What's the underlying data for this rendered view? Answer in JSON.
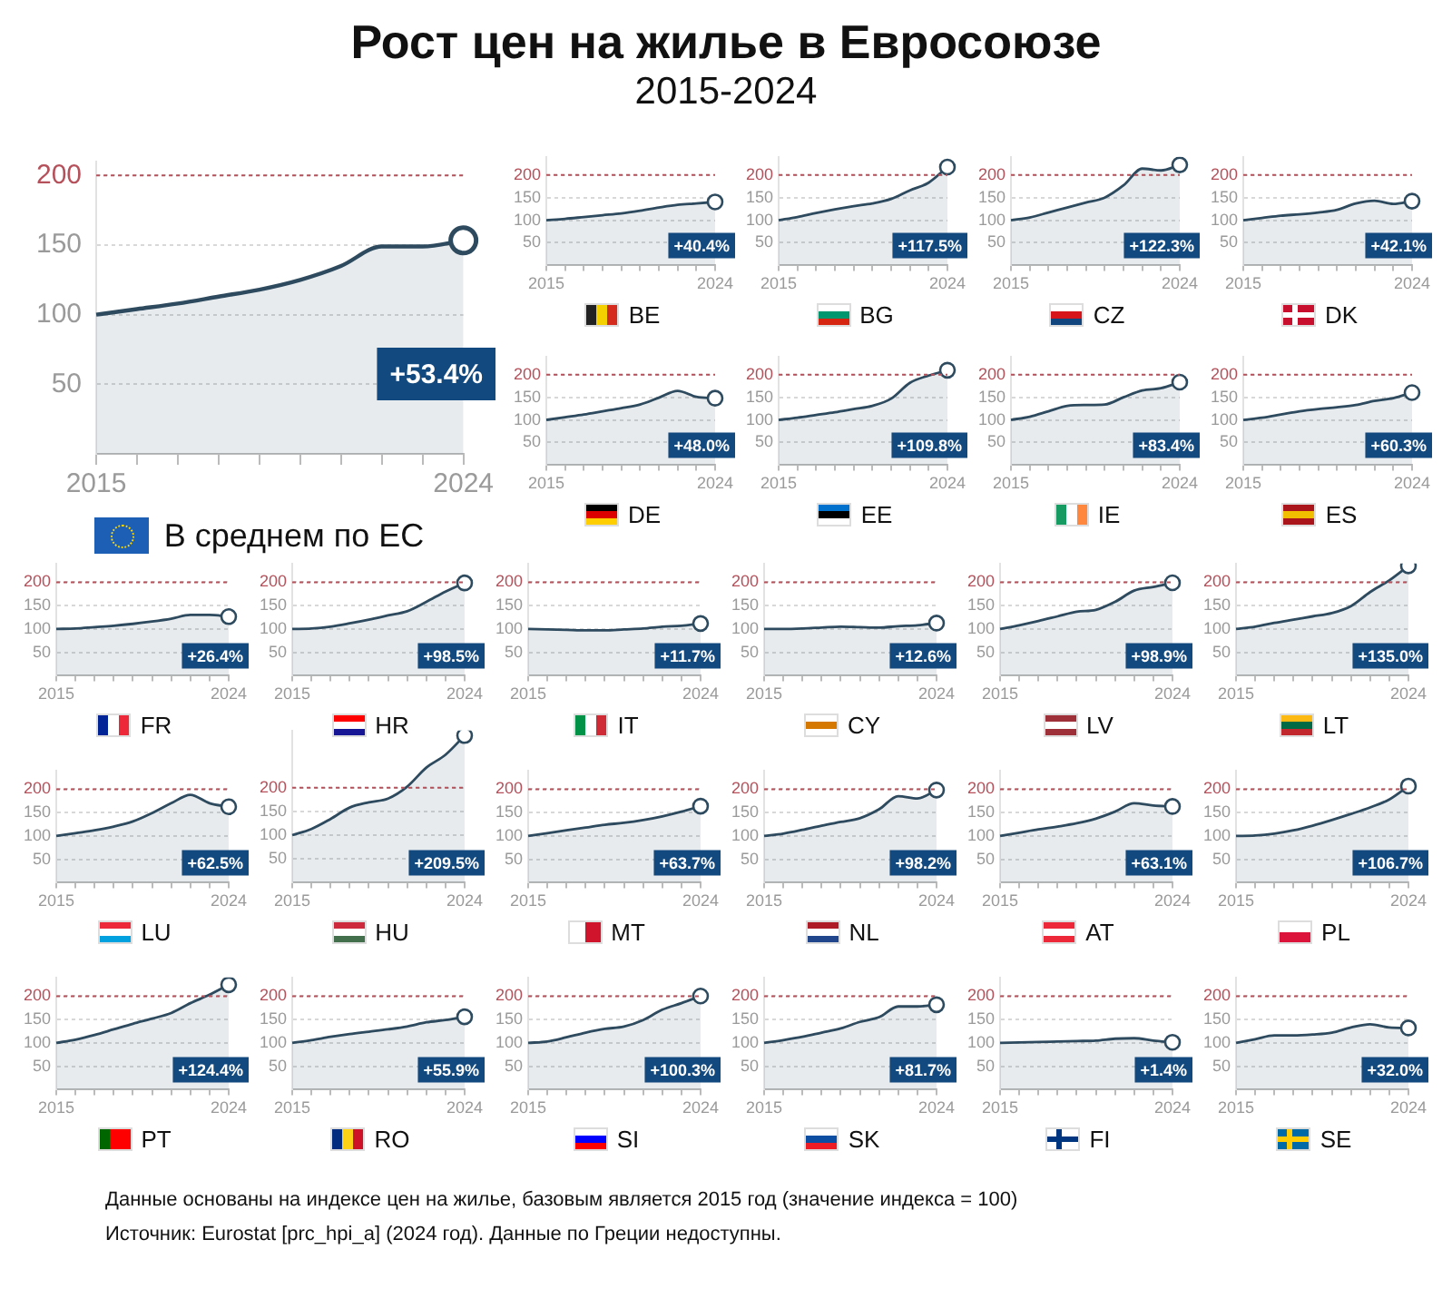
{
  "chart_data": [
    {
      "type": "other",
      "title": "Рост цен на жилье в Евросоюзе",
      "subtitle": "2015-2024",
      "annotations": [
        "Данные основаны на индексе цен на жилье, базовым является 2015 год (значение индекса = 100)",
        "Источник: Eurostat [prc_hpi_a] (2024 год). Данные по Греции недоступны."
      ]
    },
    {
      "type": "area",
      "title": "В среднем по ЕС",
      "categories": [
        "2015",
        null,
        null,
        null,
        null,
        null,
        null,
        null,
        null,
        "2024"
      ],
      "series": [
        {
          "type": "area",
          "color": "#2d4a5e",
          "values": [
            100,
            104,
            108,
            113,
            118,
            125,
            135,
            149,
            149,
            153.4
          ]
        },
        {
          "type": "scatter",
          "color": "#2d4a5e",
          "values": [
            null,
            null,
            null,
            null,
            null,
            null,
            null,
            null,
            null,
            153.4
          ],
          "marker": "circle"
        }
      ],
      "ylim": [
        0,
        210
      ],
      "yticks": [
        50,
        100,
        150,
        200
      ],
      "grid": "y",
      "ref_lines": [
        {
          "axis": "y",
          "value": 200,
          "color": "#b5515b",
          "line_style": "dotted"
        }
      ],
      "annotations": [
        "+53.4%"
      ]
    },
    {
      "type": "area",
      "title": "BE",
      "categories": [
        "2015",
        null,
        null,
        null,
        null,
        null,
        null,
        null,
        null,
        "2024"
      ],
      "series": [
        {
          "type": "area",
          "color": "#2d4a5e",
          "values": [
            100,
            103,
            107,
            111,
            115,
            121,
            128,
            134,
            137,
            140.4
          ]
        },
        {
          "type": "scatter",
          "color": "#2d4a5e",
          "values": [
            null,
            null,
            null,
            null,
            null,
            null,
            null,
            null,
            null,
            140.4
          ],
          "marker": "circle"
        }
      ],
      "ylim": [
        0,
        240
      ],
      "yticks": [
        50,
        100,
        150,
        200
      ],
      "grid": "y",
      "ref_lines": [
        {
          "axis": "y",
          "value": 200,
          "color": "#b5515b",
          "line_style": "dotted"
        }
      ],
      "annotations": [
        "+40.4%"
      ]
    },
    {
      "type": "area",
      "title": "BG",
      "categories": [
        "2015",
        null,
        null,
        null,
        null,
        null,
        null,
        null,
        null,
        "2024"
      ],
      "series": [
        {
          "type": "area",
          "color": "#2d4a5e",
          "values": [
            100,
            107,
            116,
            124,
            131,
            137,
            147,
            166,
            183,
            217.5
          ]
        },
        {
          "type": "scatter",
          "color": "#2d4a5e",
          "values": [
            null,
            null,
            null,
            null,
            null,
            null,
            null,
            null,
            null,
            217.5
          ],
          "marker": "circle"
        }
      ],
      "ylim": [
        0,
        240
      ],
      "yticks": [
        50,
        100,
        150,
        200
      ],
      "grid": "y",
      "ref_lines": [
        {
          "axis": "y",
          "value": 200,
          "color": "#b5515b",
          "line_style": "dotted"
        }
      ],
      "annotations": [
        "+117.5%"
      ]
    },
    {
      "type": "area",
      "title": "CZ",
      "categories": [
        "2015",
        null,
        null,
        null,
        null,
        null,
        null,
        null,
        null,
        "2024"
      ],
      "series": [
        {
          "type": "area",
          "color": "#2d4a5e",
          "values": [
            100,
            106,
            117,
            128,
            139,
            150,
            177,
            214,
            210,
            222.3
          ]
        },
        {
          "type": "scatter",
          "color": "#2d4a5e",
          "values": [
            null,
            null,
            null,
            null,
            null,
            null,
            null,
            null,
            null,
            222.3
          ],
          "marker": "circle"
        }
      ],
      "ylim": [
        0,
        240
      ],
      "yticks": [
        50,
        100,
        150,
        200
      ],
      "grid": "y",
      "ref_lines": [
        {
          "axis": "y",
          "value": 200,
          "color": "#b5515b",
          "line_style": "dotted"
        }
      ],
      "annotations": [
        "+122.3%"
      ]
    },
    {
      "type": "area",
      "title": "DK",
      "categories": [
        "2015",
        null,
        null,
        null,
        null,
        null,
        null,
        null,
        null,
        "2024"
      ],
      "series": [
        {
          "type": "area",
          "color": "#2d4a5e",
          "values": [
            100,
            105,
            110,
            113,
            117,
            123,
            137,
            143,
            136,
            142.1
          ]
        },
        {
          "type": "scatter",
          "color": "#2d4a5e",
          "values": [
            null,
            null,
            null,
            null,
            null,
            null,
            null,
            null,
            null,
            142.1
          ],
          "marker": "circle"
        }
      ],
      "ylim": [
        0,
        240
      ],
      "yticks": [
        50,
        100,
        150,
        200
      ],
      "grid": "y",
      "ref_lines": [
        {
          "axis": "y",
          "value": 200,
          "color": "#b5515b",
          "line_style": "dotted"
        }
      ],
      "annotations": [
        "+42.1%"
      ]
    },
    {
      "type": "area",
      "title": "DE",
      "categories": [
        "2015",
        null,
        null,
        null,
        null,
        null,
        null,
        null,
        null,
        "2024"
      ],
      "series": [
        {
          "type": "area",
          "color": "#2d4a5e",
          "values": [
            100,
            106,
            112,
            119,
            126,
            134,
            149,
            164,
            151,
            148.0
          ]
        },
        {
          "type": "scatter",
          "color": "#2d4a5e",
          "values": [
            null,
            null,
            null,
            null,
            null,
            null,
            null,
            null,
            null,
            148.0
          ],
          "marker": "circle"
        }
      ],
      "ylim": [
        0,
        240
      ],
      "yticks": [
        50,
        100,
        150,
        200
      ],
      "grid": "y",
      "ref_lines": [
        {
          "axis": "y",
          "value": 200,
          "color": "#b5515b",
          "line_style": "dotted"
        }
      ],
      "annotations": [
        "+48.0%"
      ]
    },
    {
      "type": "area",
      "title": "EE",
      "categories": [
        "2015",
        null,
        null,
        null,
        null,
        null,
        null,
        null,
        null,
        "2024"
      ],
      "series": [
        {
          "type": "area",
          "color": "#2d4a5e",
          "values": [
            100,
            105,
            111,
            117,
            124,
            131,
            147,
            182,
            198,
            209.8
          ]
        },
        {
          "type": "scatter",
          "color": "#2d4a5e",
          "values": [
            null,
            null,
            null,
            null,
            null,
            null,
            null,
            null,
            null,
            209.8
          ],
          "marker": "circle"
        }
      ],
      "ylim": [
        0,
        240
      ],
      "yticks": [
        50,
        100,
        150,
        200
      ],
      "grid": "y",
      "ref_lines": [
        {
          "axis": "y",
          "value": 200,
          "color": "#b5515b",
          "line_style": "dotted"
        }
      ],
      "annotations": [
        "+109.8%"
      ]
    },
    {
      "type": "area",
      "title": "IE",
      "categories": [
        "2015",
        null,
        null,
        null,
        null,
        null,
        null,
        null,
        null,
        "2024"
      ],
      "series": [
        {
          "type": "area",
          "color": "#2d4a5e",
          "values": [
            100,
            107,
            119,
            131,
            133,
            134,
            150,
            165,
            170,
            183.4
          ]
        },
        {
          "type": "scatter",
          "color": "#2d4a5e",
          "values": [
            null,
            null,
            null,
            null,
            null,
            null,
            null,
            null,
            null,
            183.4
          ],
          "marker": "circle"
        }
      ],
      "ylim": [
        0,
        240
      ],
      "yticks": [
        50,
        100,
        150,
        200
      ],
      "grid": "y",
      "ref_lines": [
        {
          "axis": "y",
          "value": 200,
          "color": "#b5515b",
          "line_style": "dotted"
        }
      ],
      "annotations": [
        "+83.4%"
      ]
    },
    {
      "type": "area",
      "title": "ES",
      "categories": [
        "2015",
        null,
        null,
        null,
        null,
        null,
        null,
        null,
        null,
        "2024"
      ],
      "series": [
        {
          "type": "area",
          "color": "#2d4a5e",
          "values": [
            100,
            105,
            112,
            119,
            124,
            128,
            133,
            142,
            148,
            160.3
          ]
        },
        {
          "type": "scatter",
          "color": "#2d4a5e",
          "values": [
            null,
            null,
            null,
            null,
            null,
            null,
            null,
            null,
            null,
            160.3
          ],
          "marker": "circle"
        }
      ],
      "ylim": [
        0,
        240
      ],
      "yticks": [
        50,
        100,
        150,
        200
      ],
      "grid": "y",
      "ref_lines": [
        {
          "axis": "y",
          "value": 200,
          "color": "#b5515b",
          "line_style": "dotted"
        }
      ],
      "annotations": [
        "+60.3%"
      ]
    },
    {
      "type": "area",
      "title": "FR",
      "categories": [
        "2015",
        null,
        null,
        null,
        null,
        null,
        null,
        null,
        null,
        "2024"
      ],
      "series": [
        {
          "type": "area",
          "color": "#2d4a5e",
          "values": [
            100,
            101,
            104,
            107,
            111,
            116,
            122,
            130,
            130,
            126.4
          ]
        },
        {
          "type": "scatter",
          "color": "#2d4a5e",
          "values": [
            null,
            null,
            null,
            null,
            null,
            null,
            null,
            null,
            null,
            126.4
          ],
          "marker": "circle"
        }
      ],
      "ylim": [
        0,
        240
      ],
      "yticks": [
        50,
        100,
        150,
        200
      ],
      "grid": "y",
      "ref_lines": [
        {
          "axis": "y",
          "value": 200,
          "color": "#b5515b",
          "line_style": "dotted"
        }
      ],
      "annotations": [
        "+26.4%"
      ]
    },
    {
      "type": "area",
      "title": "HR",
      "categories": [
        "2015",
        null,
        null,
        null,
        null,
        null,
        null,
        null,
        null,
        "2024"
      ],
      "series": [
        {
          "type": "area",
          "color": "#2d4a5e",
          "values": [
            100,
            101,
            105,
            112,
            120,
            129,
            138,
            158,
            180,
            198.5
          ]
        },
        {
          "type": "scatter",
          "color": "#2d4a5e",
          "values": [
            null,
            null,
            null,
            null,
            null,
            null,
            null,
            null,
            null,
            198.5
          ],
          "marker": "circle"
        }
      ],
      "ylim": [
        0,
        240
      ],
      "yticks": [
        50,
        100,
        150,
        200
      ],
      "grid": "y",
      "ref_lines": [
        {
          "axis": "y",
          "value": 200,
          "color": "#b5515b",
          "line_style": "dotted"
        }
      ],
      "annotations": [
        "+98.5%"
      ]
    },
    {
      "type": "area",
      "title": "IT",
      "categories": [
        "2015",
        null,
        null,
        null,
        null,
        null,
        null,
        null,
        null,
        "2024"
      ],
      "series": [
        {
          "type": "area",
          "color": "#2d4a5e",
          "values": [
            100,
            99,
            98,
            97,
            97,
            99,
            101,
            105,
            107,
            111.7
          ]
        },
        {
          "type": "scatter",
          "color": "#2d4a5e",
          "values": [
            null,
            null,
            null,
            null,
            null,
            null,
            null,
            null,
            null,
            111.7
          ],
          "marker": "circle"
        }
      ],
      "ylim": [
        0,
        240
      ],
      "yticks": [
        50,
        100,
        150,
        200
      ],
      "grid": "y",
      "ref_lines": [
        {
          "axis": "y",
          "value": 200,
          "color": "#b5515b",
          "line_style": "dotted"
        }
      ],
      "annotations": [
        "+11.7%"
      ]
    },
    {
      "type": "area",
      "title": "CY",
      "categories": [
        "2015",
        null,
        null,
        null,
        null,
        null,
        null,
        null,
        null,
        "2024"
      ],
      "series": [
        {
          "type": "area",
          "color": "#2d4a5e",
          "values": [
            100,
            100,
            101,
            103,
            105,
            104,
            103,
            106,
            108,
            112.6
          ]
        },
        {
          "type": "scatter",
          "color": "#2d4a5e",
          "values": [
            null,
            null,
            null,
            null,
            null,
            null,
            null,
            null,
            null,
            112.6
          ],
          "marker": "circle"
        }
      ],
      "ylim": [
        0,
        240
      ],
      "yticks": [
        50,
        100,
        150,
        200
      ],
      "grid": "y",
      "ref_lines": [
        {
          "axis": "y",
          "value": 200,
          "color": "#b5515b",
          "line_style": "dotted"
        }
      ],
      "annotations": [
        "+12.6%"
      ]
    },
    {
      "type": "area",
      "title": "LV",
      "categories": [
        "2015",
        null,
        null,
        null,
        null,
        null,
        null,
        null,
        null,
        "2024"
      ],
      "series": [
        {
          "type": "area",
          "color": "#2d4a5e",
          "values": [
            100,
            108,
            117,
            127,
            137,
            141,
            158,
            182,
            190,
            198.9
          ]
        },
        {
          "type": "scatter",
          "color": "#2d4a5e",
          "values": [
            null,
            null,
            null,
            null,
            null,
            null,
            null,
            null,
            null,
            198.9
          ],
          "marker": "circle"
        }
      ],
      "ylim": [
        0,
        240
      ],
      "yticks": [
        50,
        100,
        150,
        200
      ],
      "grid": "y",
      "ref_lines": [
        {
          "axis": "y",
          "value": 200,
          "color": "#b5515b",
          "line_style": "dotted"
        }
      ],
      "annotations": [
        "+98.9%"
      ]
    },
    {
      "type": "area",
      "title": "LT",
      "categories": [
        "2015",
        null,
        null,
        null,
        null,
        null,
        null,
        null,
        null,
        "2024"
      ],
      "series": [
        {
          "type": "area",
          "color": "#2d4a5e",
          "values": [
            100,
            105,
            113,
            120,
            127,
            134,
            149,
            179,
            204,
            235.0
          ]
        },
        {
          "type": "scatter",
          "color": "#2d4a5e",
          "values": [
            null,
            null,
            null,
            null,
            null,
            null,
            null,
            null,
            null,
            235.0
          ],
          "marker": "circle"
        }
      ],
      "ylim": [
        0,
        240
      ],
      "yticks": [
        50,
        100,
        150,
        200
      ],
      "grid": "y",
      "ref_lines": [
        {
          "axis": "y",
          "value": 200,
          "color": "#b5515b",
          "line_style": "dotted"
        }
      ],
      "annotations": [
        "+135.0%"
      ]
    },
    {
      "type": "area",
      "title": "LU",
      "categories": [
        "2015",
        null,
        null,
        null,
        null,
        null,
        null,
        null,
        null,
        "2024"
      ],
      "series": [
        {
          "type": "area",
          "color": "#2d4a5e",
          "values": [
            100,
            106,
            112,
            120,
            131,
            149,
            170,
            188,
            170,
            162.5
          ]
        },
        {
          "type": "scatter",
          "color": "#2d4a5e",
          "values": [
            null,
            null,
            null,
            null,
            null,
            null,
            null,
            null,
            null,
            162.5
          ],
          "marker": "circle"
        }
      ],
      "ylim": [
        0,
        240
      ],
      "yticks": [
        50,
        100,
        150,
        200
      ],
      "grid": "y",
      "ref_lines": [
        {
          "axis": "y",
          "value": 200,
          "color": "#b5515b",
          "line_style": "dotted"
        }
      ],
      "annotations": [
        "+62.5%"
      ]
    },
    {
      "type": "area",
      "title": "HU",
      "categories": [
        "2015",
        null,
        null,
        null,
        null,
        null,
        null,
        null,
        null,
        "2024"
      ],
      "series": [
        {
          "type": "area",
          "color": "#2d4a5e",
          "values": [
            100,
            113,
            134,
            158,
            169,
            177,
            202,
            242,
            269,
            309.5
          ]
        },
        {
          "type": "scatter",
          "color": "#2d4a5e",
          "values": [
            null,
            null,
            null,
            null,
            null,
            null,
            null,
            null,
            null,
            309.5
          ],
          "marker": "circle"
        }
      ],
      "ylim": [
        0,
        320
      ],
      "yticks": [
        50,
        100,
        150,
        200
      ],
      "grid": "y",
      "ref_lines": [
        {
          "axis": "y",
          "value": 200,
          "color": "#b5515b",
          "line_style": "dotted"
        }
      ],
      "annotations": [
        "+209.5%"
      ]
    },
    {
      "type": "area",
      "title": "MT",
      "categories": [
        "2015",
        null,
        null,
        null,
        null,
        null,
        null,
        null,
        null,
        "2024"
      ],
      "series": [
        {
          "type": "area",
          "color": "#2d4a5e",
          "values": [
            100,
            106,
            112,
            118,
            124,
            128,
            134,
            142,
            152,
            163.7
          ]
        },
        {
          "type": "scatter",
          "color": "#2d4a5e",
          "values": [
            null,
            null,
            null,
            null,
            null,
            null,
            null,
            null,
            null,
            163.7
          ],
          "marker": "circle"
        }
      ],
      "ylim": [
        0,
        240
      ],
      "yticks": [
        50,
        100,
        150,
        200
      ],
      "grid": "y",
      "ref_lines": [
        {
          "axis": "y",
          "value": 200,
          "color": "#b5515b",
          "line_style": "dotted"
        }
      ],
      "annotations": [
        "+63.7%"
      ]
    },
    {
      "type": "area",
      "title": "NL",
      "categories": [
        "2015",
        null,
        null,
        null,
        null,
        null,
        null,
        null,
        null,
        "2024"
      ],
      "series": [
        {
          "type": "area",
          "color": "#2d4a5e",
          "values": [
            100,
            105,
            113,
            122,
            130,
            138,
            157,
            185,
            180,
            198.2
          ]
        },
        {
          "type": "scatter",
          "color": "#2d4a5e",
          "values": [
            null,
            null,
            null,
            null,
            null,
            null,
            null,
            null,
            null,
            198.2
          ],
          "marker": "circle"
        }
      ],
      "ylim": [
        0,
        240
      ],
      "yticks": [
        50,
        100,
        150,
        200
      ],
      "grid": "y",
      "ref_lines": [
        {
          "axis": "y",
          "value": 200,
          "color": "#b5515b",
          "line_style": "dotted"
        }
      ],
      "annotations": [
        "+98.2%"
      ]
    },
    {
      "type": "area",
      "title": "AT",
      "categories": [
        "2015",
        null,
        null,
        null,
        null,
        null,
        null,
        null,
        null,
        "2024"
      ],
      "series": [
        {
          "type": "area",
          "color": "#2d4a5e",
          "values": [
            100,
            107,
            114,
            120,
            127,
            137,
            152,
            170,
            165,
            163.1
          ]
        },
        {
          "type": "scatter",
          "color": "#2d4a5e",
          "values": [
            null,
            null,
            null,
            null,
            null,
            null,
            null,
            null,
            null,
            163.1
          ],
          "marker": "circle"
        }
      ],
      "ylim": [
        0,
        240
      ],
      "yticks": [
        50,
        100,
        150,
        200
      ],
      "grid": "y",
      "ref_lines": [
        {
          "axis": "y",
          "value": 200,
          "color": "#b5515b",
          "line_style": "dotted"
        }
      ],
      "annotations": [
        "+63.1%"
      ]
    },
    {
      "type": "area",
      "title": "PL",
      "categories": [
        "2015",
        null,
        null,
        null,
        null,
        null,
        null,
        null,
        null,
        "2024"
      ],
      "series": [
        {
          "type": "area",
          "color": "#2d4a5e",
          "values": [
            100,
            101,
            105,
            112,
            122,
            134,
            147,
            161,
            178,
            206.7
          ]
        },
        {
          "type": "scatter",
          "color": "#2d4a5e",
          "values": [
            null,
            null,
            null,
            null,
            null,
            null,
            null,
            null,
            null,
            206.7
          ],
          "marker": "circle"
        }
      ],
      "ylim": [
        0,
        240
      ],
      "yticks": [
        50,
        100,
        150,
        200
      ],
      "grid": "y",
      "ref_lines": [
        {
          "axis": "y",
          "value": 200,
          "color": "#b5515b",
          "line_style": "dotted"
        }
      ],
      "annotations": [
        "+106.7%"
      ]
    },
    {
      "type": "area",
      "title": "PT",
      "categories": [
        "2015",
        null,
        null,
        null,
        null,
        null,
        null,
        null,
        null,
        "2024"
      ],
      "series": [
        {
          "type": "area",
          "color": "#2d4a5e",
          "values": [
            100,
            107,
            117,
            129,
            141,
            152,
            164,
            185,
            203,
            224.4
          ]
        },
        {
          "type": "scatter",
          "color": "#2d4a5e",
          "values": [
            null,
            null,
            null,
            null,
            null,
            null,
            null,
            null,
            null,
            224.4
          ],
          "marker": "circle"
        }
      ],
      "ylim": [
        0,
        240
      ],
      "yticks": [
        50,
        100,
        150,
        200
      ],
      "grid": "y",
      "ref_lines": [
        {
          "axis": "y",
          "value": 200,
          "color": "#b5515b",
          "line_style": "dotted"
        }
      ],
      "annotations": [
        "+124.4%"
      ]
    },
    {
      "type": "area",
      "title": "RO",
      "categories": [
        "2015",
        null,
        null,
        null,
        null,
        null,
        null,
        null,
        null,
        "2024"
      ],
      "series": [
        {
          "type": "area",
          "color": "#2d4a5e",
          "values": [
            100,
            106,
            113,
            119,
            124,
            129,
            135,
            144,
            149,
            155.9
          ]
        },
        {
          "type": "scatter",
          "color": "#2d4a5e",
          "values": [
            null,
            null,
            null,
            null,
            null,
            null,
            null,
            null,
            null,
            155.9
          ],
          "marker": "circle"
        }
      ],
      "ylim": [
        0,
        240
      ],
      "yticks": [
        50,
        100,
        150,
        200
      ],
      "grid": "y",
      "ref_lines": [
        {
          "axis": "y",
          "value": 200,
          "color": "#b5515b",
          "line_style": "dotted"
        }
      ],
      "annotations": [
        "+55.9%"
      ]
    },
    {
      "type": "area",
      "title": "SI",
      "categories": [
        "2015",
        null,
        null,
        null,
        null,
        null,
        null,
        null,
        null,
        "2024"
      ],
      "series": [
        {
          "type": "area",
          "color": "#2d4a5e",
          "values": [
            100,
            103,
            112,
            122,
            130,
            135,
            149,
            171,
            185,
            200.3
          ]
        },
        {
          "type": "scatter",
          "color": "#2d4a5e",
          "values": [
            null,
            null,
            null,
            null,
            null,
            null,
            null,
            null,
            null,
            200.3
          ],
          "marker": "circle"
        }
      ],
      "ylim": [
        0,
        240
      ],
      "yticks": [
        50,
        100,
        150,
        200
      ],
      "grid": "y",
      "ref_lines": [
        {
          "axis": "y",
          "value": 200,
          "color": "#b5515b",
          "line_style": "dotted"
        }
      ],
      "annotations": [
        "+100.3%"
      ]
    },
    {
      "type": "area",
      "title": "SK",
      "categories": [
        "2015",
        null,
        null,
        null,
        null,
        null,
        null,
        null,
        null,
        "2024"
      ],
      "series": [
        {
          "type": "area",
          "color": "#2d4a5e",
          "values": [
            100,
            106,
            113,
            122,
            131,
            145,
            155,
            178,
            178,
            181.7
          ]
        },
        {
          "type": "scatter",
          "color": "#2d4a5e",
          "values": [
            null,
            null,
            null,
            null,
            null,
            null,
            null,
            null,
            null,
            181.7
          ],
          "marker": "circle"
        }
      ],
      "ylim": [
        0,
        240
      ],
      "yticks": [
        50,
        100,
        150,
        200
      ],
      "grid": "y",
      "ref_lines": [
        {
          "axis": "y",
          "value": 200,
          "color": "#b5515b",
          "line_style": "dotted"
        }
      ],
      "annotations": [
        "+81.7%"
      ]
    },
    {
      "type": "area",
      "title": "FI",
      "categories": [
        "2015",
        null,
        null,
        null,
        null,
        null,
        null,
        null,
        null,
        "2024"
      ],
      "series": [
        {
          "type": "area",
          "color": "#2d4a5e",
          "values": [
            100,
            101,
            102,
            103,
            104,
            105,
            109,
            110,
            105,
            101.4
          ]
        },
        {
          "type": "scatter",
          "color": "#2d4a5e",
          "values": [
            null,
            null,
            null,
            null,
            null,
            null,
            null,
            null,
            null,
            101.4
          ],
          "marker": "circle"
        }
      ],
      "ylim": [
        0,
        240
      ],
      "yticks": [
        50,
        100,
        150,
        200
      ],
      "grid": "y",
      "ref_lines": [
        {
          "axis": "y",
          "value": 200,
          "color": "#b5515b",
          "line_style": "dotted"
        }
      ],
      "annotations": [
        "+1.4%"
      ]
    },
    {
      "type": "area",
      "title": "SE",
      "categories": [
        "2015",
        null,
        null,
        null,
        null,
        null,
        null,
        null,
        null,
        "2024"
      ],
      "series": [
        {
          "type": "area",
          "color": "#2d4a5e",
          "values": [
            100,
            108,
            116,
            116,
            118,
            122,
            133,
            140,
            133,
            132.0
          ]
        },
        {
          "type": "scatter",
          "color": "#2d4a5e",
          "values": [
            null,
            null,
            null,
            null,
            null,
            null,
            null,
            null,
            null,
            132.0
          ],
          "marker": "circle"
        }
      ],
      "ylim": [
        0,
        240
      ],
      "yticks": [
        50,
        100,
        150,
        200
      ],
      "grid": "y",
      "ref_lines": [
        {
          "axis": "y",
          "value": 200,
          "color": "#b5515b",
          "line_style": "dotted"
        }
      ],
      "annotations": [
        "+32.0%"
      ]
    }
  ]
}
